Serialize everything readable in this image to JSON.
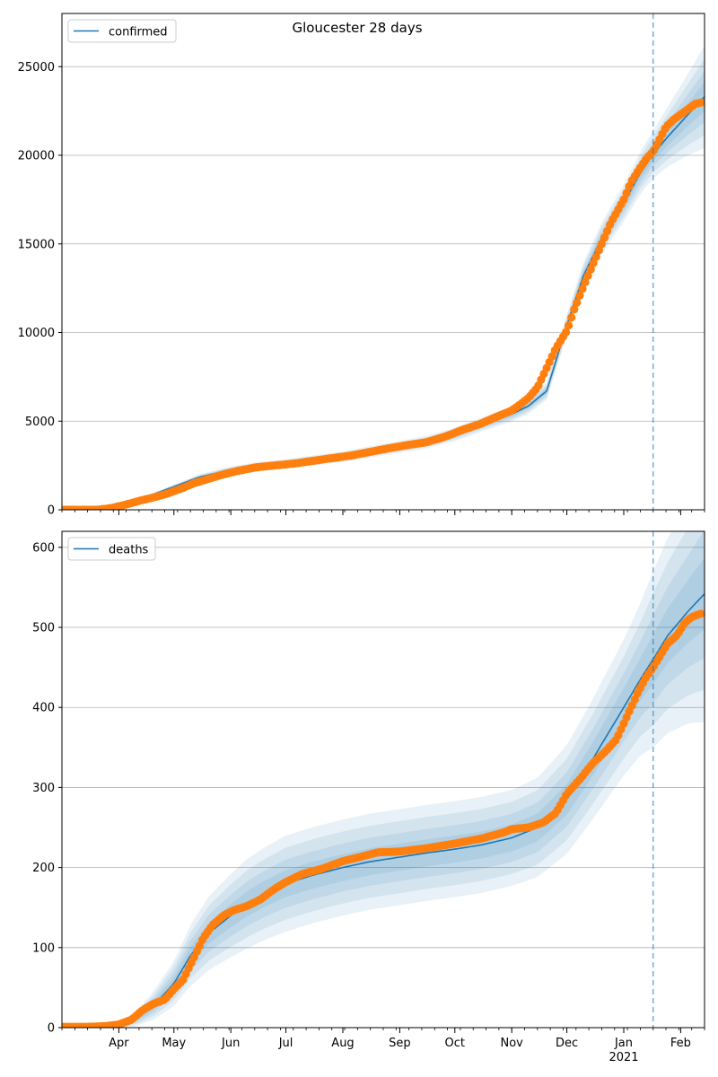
{
  "figure": {
    "suptitle": "Gloucester 28 days"
  },
  "colors": {
    "model_line": "#1f77b4",
    "band": "#1f77b4",
    "observed": "#ff7f0e",
    "grid": "#b0b0b0",
    "today_line": "#1f77b4"
  },
  "chart_data": [
    {
      "type": "line",
      "panel": "top",
      "legend": "confirmed",
      "legend_position": "top-left",
      "grid": "horizontal",
      "x_range": [
        "2020-03-01",
        "2021-02-14"
      ],
      "today_marker": "2021-01-17",
      "ylim": [
        0,
        28000
      ],
      "yticks": [
        0,
        5000,
        10000,
        15000,
        20000,
        25000
      ],
      "x_tick_labels": [
        {
          "date": "2020-04-01",
          "label": "Apr"
        },
        {
          "date": "2020-05-01",
          "label": "May"
        },
        {
          "date": "2020-06-01",
          "label": "Jun"
        },
        {
          "date": "2020-07-01",
          "label": "Jul"
        },
        {
          "date": "2020-08-01",
          "label": "Aug"
        },
        {
          "date": "2020-09-01",
          "label": "Sep"
        },
        {
          "date": "2020-10-01",
          "label": "Oct"
        },
        {
          "date": "2020-11-01",
          "label": "Nov"
        },
        {
          "date": "2020-12-01",
          "label": "Dec"
        },
        {
          "date": "2021-01-01",
          "label": "Jan",
          "sublabel": "2021"
        },
        {
          "date": "2021-02-01",
          "label": "Feb"
        }
      ],
      "model": {
        "x": [
          "2020-03-01",
          "2020-03-20",
          "2020-04-01",
          "2020-04-15",
          "2020-05-01",
          "2020-05-15",
          "2020-06-01",
          "2020-06-15",
          "2020-07-01",
          "2020-07-15",
          "2020-08-01",
          "2020-08-15",
          "2020-09-01",
          "2020-09-15",
          "2020-10-01",
          "2020-10-15",
          "2020-11-01",
          "2020-11-10",
          "2020-11-20",
          "2020-12-01",
          "2020-12-10",
          "2020-12-20",
          "2021-01-01",
          "2021-01-10",
          "2021-01-17",
          "2021-01-25",
          "2021-02-05",
          "2021-02-14"
        ],
        "y": [
          0,
          0,
          180,
          700,
          1300,
          1850,
          2250,
          2450,
          2600,
          2780,
          3000,
          3250,
          3550,
          3800,
          4250,
          4800,
          5400,
          5850,
          6700,
          10400,
          13200,
          15300,
          17300,
          19000,
          20050,
          21050,
          22300,
          23300
        ],
        "band_spread": [
          0,
          0,
          30,
          60,
          120,
          160,
          200,
          240,
          260,
          280,
          300,
          320,
          340,
          360,
          380,
          400,
          420,
          440,
          480,
          620,
          760,
          900,
          1050,
          1200,
          1350,
          1700,
          2300,
          2900
        ]
      },
      "observed": {
        "x": [
          "2020-03-01",
          "2020-03-10",
          "2020-03-20",
          "2020-03-28",
          "2020-04-05",
          "2020-04-12",
          "2020-04-20",
          "2020-04-27",
          "2020-05-05",
          "2020-05-12",
          "2020-05-20",
          "2020-05-28",
          "2020-06-05",
          "2020-06-15",
          "2020-06-25",
          "2020-07-05",
          "2020-07-15",
          "2020-07-25",
          "2020-08-05",
          "2020-08-15",
          "2020-08-25",
          "2020-09-05",
          "2020-09-15",
          "2020-09-25",
          "2020-10-05",
          "2020-10-15",
          "2020-10-25",
          "2020-11-01",
          "2020-11-05",
          "2020-11-10",
          "2020-11-15",
          "2020-11-20",
          "2020-11-25",
          "2020-12-01",
          "2020-12-05",
          "2020-12-10",
          "2020-12-15",
          "2020-12-20",
          "2020-12-25",
          "2021-01-01",
          "2021-01-05",
          "2021-01-10",
          "2021-01-14",
          "2021-01-17",
          "2021-01-20",
          "2021-01-24",
          "2021-01-28",
          "2021-02-01",
          "2021-02-05",
          "2021-02-09",
          "2021-02-13"
        ],
        "y": [
          0,
          0,
          0,
          100,
          300,
          500,
          700,
          900,
          1200,
          1500,
          1750,
          2000,
          2200,
          2400,
          2500,
          2600,
          2750,
          2900,
          3050,
          3250,
          3450,
          3650,
          3800,
          4100,
          4500,
          4850,
          5300,
          5600,
          5900,
          6300,
          6900,
          8000,
          9100,
          10100,
          11300,
          12600,
          13800,
          15000,
          16200,
          17500,
          18500,
          19300,
          19900,
          20200,
          20800,
          21600,
          22000,
          22300,
          22600,
          22900,
          23000
        ]
      }
    },
    {
      "type": "line",
      "panel": "bottom",
      "legend": "deaths",
      "legend_position": "top-left",
      "grid": "horizontal",
      "x_range": [
        "2020-03-01",
        "2021-02-14"
      ],
      "today_marker": "2021-01-17",
      "ylim": [
        0,
        620
      ],
      "yticks": [
        0,
        100,
        200,
        300,
        400,
        500,
        600
      ],
      "x_tick_labels": [
        {
          "date": "2020-04-01",
          "label": "Apr"
        },
        {
          "date": "2020-05-01",
          "label": "May"
        },
        {
          "date": "2020-06-01",
          "label": "Jun"
        },
        {
          "date": "2020-07-01",
          "label": "Jul"
        },
        {
          "date": "2020-08-01",
          "label": "Aug"
        },
        {
          "date": "2020-09-01",
          "label": "Sep"
        },
        {
          "date": "2020-10-01",
          "label": "Oct"
        },
        {
          "date": "2020-11-01",
          "label": "Nov"
        },
        {
          "date": "2020-12-01",
          "label": "Dec"
        },
        {
          "date": "2021-01-01",
          "label": "Jan",
          "sublabel": "2021"
        },
        {
          "date": "2021-02-01",
          "label": "Feb"
        }
      ],
      "model": {
        "x": [
          "2020-03-01",
          "2020-03-25",
          "2020-04-01",
          "2020-04-10",
          "2020-04-20",
          "2020-05-01",
          "2020-05-10",
          "2020-05-20",
          "2020-06-01",
          "2020-06-10",
          "2020-06-20",
          "2020-07-01",
          "2020-07-15",
          "2020-08-01",
          "2020-08-15",
          "2020-09-01",
          "2020-09-15",
          "2020-10-01",
          "2020-10-15",
          "2020-11-01",
          "2020-11-15",
          "2020-12-01",
          "2020-12-15",
          "2021-01-01",
          "2021-01-10",
          "2021-01-17",
          "2021-01-25",
          "2021-02-05",
          "2021-02-14"
        ],
        "y": [
          0,
          1,
          3,
          10,
          28,
          55,
          90,
          118,
          140,
          155,
          168,
          180,
          190,
          200,
          207,
          213,
          218,
          223,
          228,
          237,
          250,
          285,
          335,
          400,
          435,
          460,
          490,
          520,
          542
        ],
        "band_spread": [
          0,
          1,
          3,
          8,
          18,
          28,
          38,
          46,
          52,
          56,
          58,
          60,
          60,
          60,
          60,
          60,
          60,
          60,
          60,
          60,
          62,
          68,
          75,
          85,
          95,
          110,
          122,
          140,
          160
        ]
      },
      "observed": {
        "x": [
          "2020-03-01",
          "2020-03-15",
          "2020-03-25",
          "2020-04-01",
          "2020-04-08",
          "2020-04-14",
          "2020-04-20",
          "2020-04-26",
          "2020-05-01",
          "2020-05-06",
          "2020-05-12",
          "2020-05-17",
          "2020-05-22",
          "2020-05-28",
          "2020-06-03",
          "2020-06-10",
          "2020-06-17",
          "2020-06-24",
          "2020-07-01",
          "2020-07-10",
          "2020-07-20",
          "2020-08-01",
          "2020-08-10",
          "2020-08-20",
          "2020-09-01",
          "2020-09-15",
          "2020-10-01",
          "2020-10-15",
          "2020-10-28",
          "2020-11-01",
          "2020-11-10",
          "2020-11-18",
          "2020-11-25",
          "2020-12-01",
          "2020-12-08",
          "2020-12-15",
          "2020-12-22",
          "2020-12-28",
          "2021-01-01",
          "2021-01-05",
          "2021-01-09",
          "2021-01-13",
          "2021-01-17",
          "2021-01-21",
          "2021-01-25",
          "2021-01-30",
          "2021-02-03",
          "2021-02-07",
          "2021-02-12"
        ],
        "y": [
          1,
          1,
          2,
          4,
          10,
          22,
          30,
          35,
          48,
          60,
          88,
          112,
          128,
          140,
          147,
          152,
          160,
          172,
          182,
          192,
          198,
          208,
          213,
          219,
          220,
          224,
          230,
          236,
          244,
          248,
          250,
          256,
          268,
          292,
          310,
          330,
          345,
          360,
          380,
          400,
          420,
          437,
          450,
          465,
          480,
          490,
          505,
          513,
          517
        ]
      }
    }
  ]
}
